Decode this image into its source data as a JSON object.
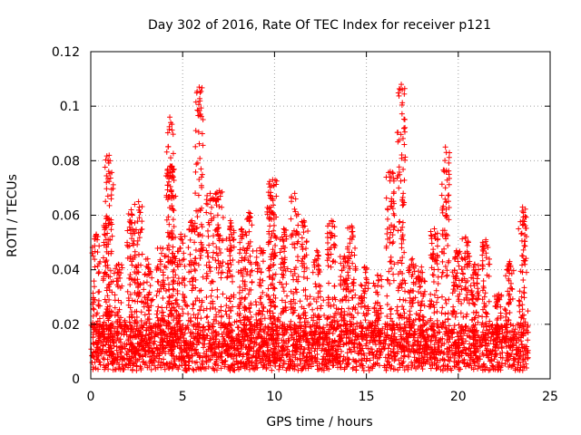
{
  "chart_data": {
    "type": "scatter",
    "title": "Day 302 of 2016, Rate Of TEC Index for receiver p121",
    "xlabel": "GPS time / hours",
    "ylabel": "ROTI / TECUs",
    "xlim": [
      0,
      25
    ],
    "ylim": [
      0,
      0.12
    ],
    "x_ticks": [
      0,
      5,
      10,
      15,
      20,
      25
    ],
    "y_ticks": [
      0,
      0.02,
      0.04,
      0.06,
      0.08,
      0.1,
      0.12
    ],
    "x_tick_labels": [
      "0",
      "5",
      "10",
      "15",
      "20",
      "25"
    ],
    "y_tick_labels": [
      "0",
      "0.02",
      "0.04",
      "0.06",
      "0.08",
      "0.1",
      "0.12"
    ],
    "grid": true,
    "marker": "+",
    "series_color": "#ff0000",
    "time_range": [
      0,
      23.8
    ],
    "base_level_range": [
      0.003,
      0.02
    ],
    "peaks": [
      {
        "x": 0.3,
        "y": 0.053
      },
      {
        "x": 0.9,
        "y": 0.059
      },
      {
        "x": 1.0,
        "y": 0.082
      },
      {
        "x": 1.5,
        "y": 0.042
      },
      {
        "x": 2.2,
        "y": 0.062
      },
      {
        "x": 2.6,
        "y": 0.065
      },
      {
        "x": 3.1,
        "y": 0.044
      },
      {
        "x": 3.8,
        "y": 0.048
      },
      {
        "x": 4.3,
        "y": 0.096
      },
      {
        "x": 4.4,
        "y": 0.078
      },
      {
        "x": 4.9,
        "y": 0.053
      },
      {
        "x": 5.5,
        "y": 0.058
      },
      {
        "x": 5.9,
        "y": 0.107
      },
      {
        "x": 6.5,
        "y": 0.068
      },
      {
        "x": 7.0,
        "y": 0.069
      },
      {
        "x": 7.6,
        "y": 0.058
      },
      {
        "x": 8.2,
        "y": 0.055
      },
      {
        "x": 8.6,
        "y": 0.061
      },
      {
        "x": 9.2,
        "y": 0.048
      },
      {
        "x": 9.8,
        "y": 0.063
      },
      {
        "x": 9.9,
        "y": 0.073
      },
      {
        "x": 10.5,
        "y": 0.055
      },
      {
        "x": 11.1,
        "y": 0.068
      },
      {
        "x": 11.6,
        "y": 0.058
      },
      {
        "x": 12.3,
        "y": 0.047
      },
      {
        "x": 13.1,
        "y": 0.058
      },
      {
        "x": 13.8,
        "y": 0.045
      },
      {
        "x": 14.2,
        "y": 0.056
      },
      {
        "x": 14.9,
        "y": 0.041
      },
      {
        "x": 15.6,
        "y": 0.038
      },
      {
        "x": 16.3,
        "y": 0.076
      },
      {
        "x": 16.9,
        "y": 0.108
      },
      {
        "x": 17.5,
        "y": 0.044
      },
      {
        "x": 18.0,
        "y": 0.041
      },
      {
        "x": 18.7,
        "y": 0.055
      },
      {
        "x": 19.3,
        "y": 0.085
      },
      {
        "x": 19.9,
        "y": 0.047
      },
      {
        "x": 20.4,
        "y": 0.052
      },
      {
        "x": 20.9,
        "y": 0.042
      },
      {
        "x": 21.5,
        "y": 0.051
      },
      {
        "x": 22.2,
        "y": 0.031
      },
      {
        "x": 22.8,
        "y": 0.043
      },
      {
        "x": 23.5,
        "y": 0.063
      }
    ]
  }
}
